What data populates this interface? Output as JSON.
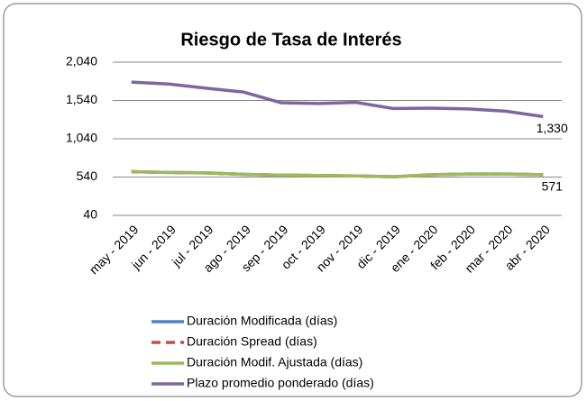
{
  "chart_data": {
    "type": "line",
    "title": "Riesgo de Tasa de Interés",
    "categories": [
      "may - 2019",
      "jun - 2019",
      "jul - 2019",
      "ago - 2019",
      "sep - 2019",
      "oct - 2019",
      "nov - 2019",
      "dic - 2019",
      "ene - 2020",
      "feb - 2020",
      "mar - 2020",
      "abr - 2020"
    ],
    "series": [
      {
        "name": "Duración Modificada (días)",
        "color": "#4f81bd",
        "values": [
          610,
          600,
          595,
          575,
          565,
          560,
          555,
          545,
          570,
          580,
          580,
          571
        ]
      },
      {
        "name": "Duración Spread (días)",
        "color": "#c0504d",
        "dashed": true,
        "values": [
          610,
          600,
          595,
          575,
          565,
          560,
          555,
          545,
          570,
          580,
          580,
          571
        ]
      },
      {
        "name": "Duración Modif. Ajustada (días)",
        "color": "#9bbb59",
        "values": [
          610,
          600,
          595,
          575,
          565,
          560,
          555,
          545,
          570,
          580,
          580,
          571
        ],
        "value_labels": [
          null,
          null,
          null,
          null,
          null,
          null,
          null,
          null,
          null,
          null,
          null,
          "571"
        ]
      },
      {
        "name": "Plazo promedio ponderado (días)",
        "color": "#8064a2",
        "values": [
          1780,
          1755,
          1700,
          1650,
          1510,
          1500,
          1515,
          1435,
          1440,
          1430,
          1400,
          1330
        ],
        "value_labels": [
          null,
          null,
          null,
          null,
          null,
          null,
          null,
          null,
          null,
          null,
          null,
          "1,330"
        ]
      }
    ],
    "ylim": [
      40,
      2040
    ],
    "yticks": [
      40,
      540,
      {
        "value": 1040,
        "label": "1,040"
      },
      {
        "value": 1540,
        "label": "1,540"
      },
      {
        "value": 2040,
        "label": "2,040"
      }
    ],
    "grid": true
  }
}
